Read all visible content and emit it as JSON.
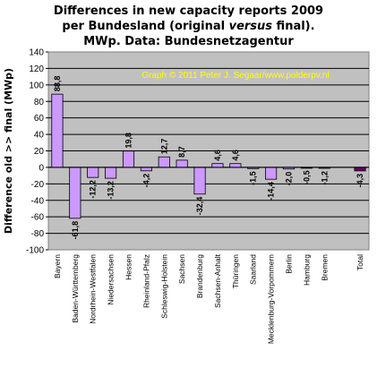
{
  "title": {
    "line1": "Differences in new capacity reports 2009",
    "line2_pre": "per Bundesland (original ",
    "line2_em": "versus",
    "line2_post": " final).",
    "line3": "MWp. Data: Bundesnetzagentur"
  },
  "credit": "Graph © 2011 Peter J. Segaar/www.polderpv.nl",
  "colors": {
    "plot_bg": "#c0c0c0",
    "bar": "#cc99ff",
    "bar_total": "#660066",
    "credit": "#ffff00",
    "bar_stroke": "#000000"
  },
  "chart_data": {
    "type": "bar",
    "ylabel": "Difference old >> final (MWp)",
    "ylim": [
      -100,
      140
    ],
    "ytick_step": 20,
    "grid": true,
    "categories": [
      "Bayern",
      "Baden-Württemberg",
      "Nordrhein-Westfalen",
      "Niedersachsen",
      "Hessen",
      "Rheinland-Pfalz",
      "Schleswig-Holstein",
      "Sachsen",
      "Brandenburg",
      "Sachsen-Anhalt",
      "Thüringen",
      "Saarland",
      "Mecklenburg-Vorpommern",
      "Berlin",
      "Hamburg",
      "Bremen",
      "Total"
    ],
    "values": [
      88.8,
      -61.8,
      -12.2,
      -13.2,
      19.8,
      -4.2,
      12.7,
      8.7,
      -32.4,
      4.6,
      4.6,
      -1.5,
      -14.4,
      -2.0,
      -0.5,
      -1.2,
      -4.3
    ],
    "value_labels": [
      "88,8",
      "-61,8",
      "-12,2",
      "-13,2",
      "19,8",
      "-4,2",
      "12,7",
      "8,7",
      "-32,4",
      "4,6",
      "4,6",
      "-1,5",
      "-14,4",
      "-2,0",
      "-0,5",
      "-1,2",
      "-4,3"
    ],
    "gap_before_last": true
  }
}
